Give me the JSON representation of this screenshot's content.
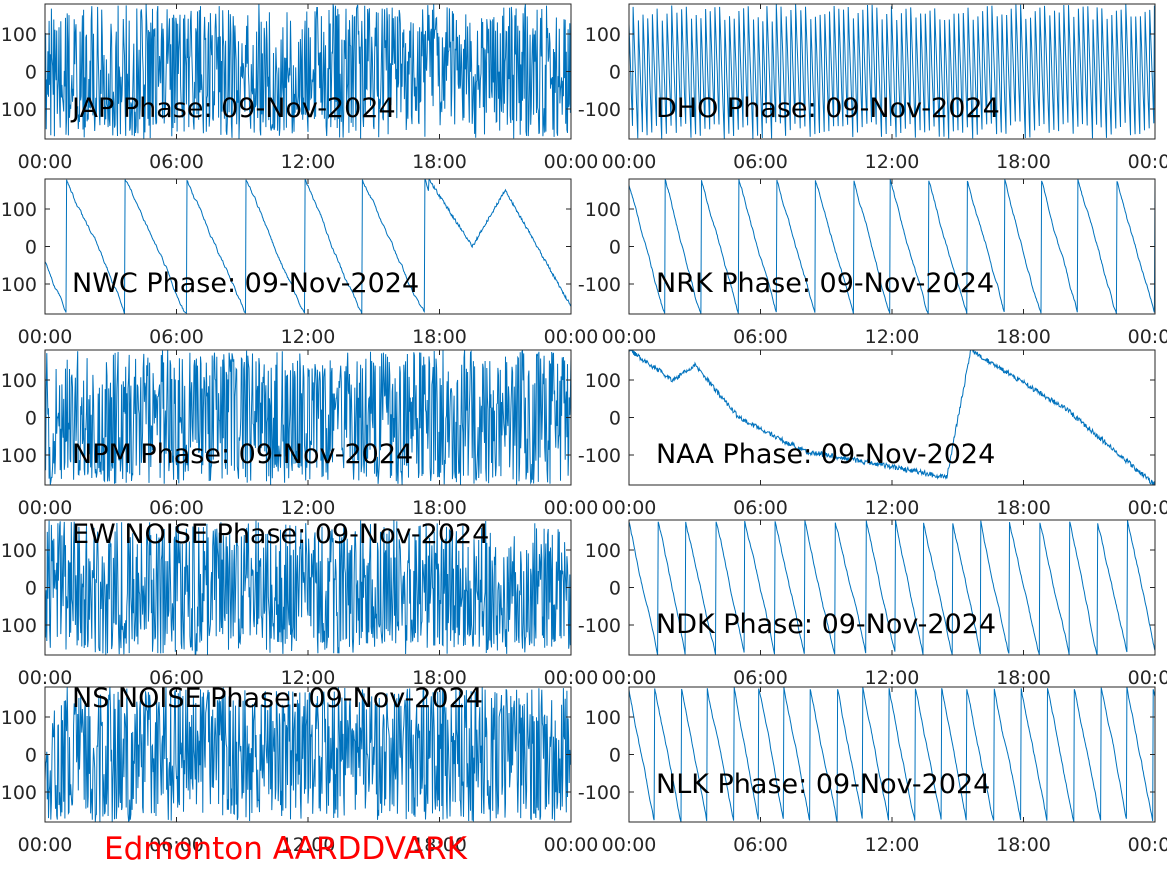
{
  "footer": {
    "label": "Edmonton AARDDVARK",
    "color": "#ff0000"
  },
  "style": {
    "line_color": "#0072bd",
    "axis_color": "#262626",
    "text_color": "#000000"
  },
  "chart_data": [
    {
      "type": "line",
      "title": "JAP Phase: 09-Nov-2024",
      "x_ticks": [
        "00:00",
        "06:00",
        "12:00",
        "18:00",
        "00:00"
      ],
      "y_ticks": [
        "100",
        "0",
        "-100"
      ],
      "ylim": [
        -180,
        180
      ],
      "xlim_hours": [
        0,
        24
      ],
      "pattern": "noise",
      "samples": [
        {
          "t": 0,
          "v": 120
        },
        {
          "t": 6,
          "v": -40
        },
        {
          "t": 12,
          "v": 60
        },
        {
          "t": 18,
          "v": -90
        },
        {
          "t": 24,
          "v": 30
        }
      ]
    },
    {
      "type": "line",
      "title": "DHO Phase: 09-Nov-2024",
      "x_ticks": [
        "00:00",
        "06:00",
        "12:00",
        "18:00",
        "00:00"
      ],
      "y_ticks": [
        "100",
        "0",
        "-100"
      ],
      "ylim": [
        -180,
        180
      ],
      "xlim_hours": [
        0,
        24
      ],
      "pattern": "dense-sawtooth",
      "samples": [
        {
          "t": 0,
          "v": 170
        },
        {
          "t": 7.5,
          "v": -180
        },
        {
          "t": 12,
          "v": 150
        },
        {
          "t": 24,
          "v": -170
        }
      ]
    },
    {
      "type": "line",
      "title": "NWC Phase: 09-Nov-2024",
      "x_ticks": [
        "00:00",
        "06:00",
        "12:00",
        "18:00",
        "00:00"
      ],
      "y_ticks": [
        "100",
        "0",
        "-100"
      ],
      "ylim": [
        -180,
        180
      ],
      "xlim_hours": [
        0,
        24
      ],
      "pattern": "sawtooth",
      "samples": [
        {
          "t": 0,
          "v": -40
        },
        {
          "t": 1,
          "v": 180
        },
        {
          "t": 3.3,
          "v": -170
        },
        {
          "t": 17.5,
          "v": 180
        },
        {
          "t": 19.5,
          "v": 0
        },
        {
          "t": 21,
          "v": 150
        },
        {
          "t": 24,
          "v": -160
        }
      ]
    },
    {
      "type": "line",
      "title": "NRK Phase: 09-Nov-2024",
      "x_ticks": [
        "00:00",
        "06:00",
        "12:00",
        "18:00",
        "00:00"
      ],
      "y_ticks": [
        "100",
        "0",
        "-100"
      ],
      "ylim": [
        -180,
        180
      ],
      "xlim_hours": [
        0,
        24
      ],
      "pattern": "sawtooth",
      "samples": [
        {
          "t": 0,
          "v": 170
        },
        {
          "t": 1.2,
          "v": -170
        },
        {
          "t": 12,
          "v": 90
        },
        {
          "t": 24,
          "v": 20
        }
      ]
    },
    {
      "type": "line",
      "title": "NPM Phase: 09-Nov-2024",
      "x_ticks": [
        "00:00",
        "06:00",
        "12:00",
        "18:00",
        "00:00"
      ],
      "y_ticks": [
        "100",
        "0",
        "-100"
      ],
      "ylim": [
        -180,
        180
      ],
      "xlim_hours": [
        0,
        24
      ],
      "pattern": "noise",
      "samples": [
        {
          "t": 0,
          "v": 50
        },
        {
          "t": 12,
          "v": -60
        },
        {
          "t": 18,
          "v": 40
        },
        {
          "t": 24,
          "v": -30
        }
      ]
    },
    {
      "type": "line",
      "title": "NAA Phase: 09-Nov-2024",
      "x_ticks": [
        "00:00",
        "06:00",
        "12:00",
        "18:00",
        "00:00"
      ],
      "y_ticks": [
        "100",
        "0",
        "-100"
      ],
      "ylim": [
        -180,
        180
      ],
      "xlim_hours": [
        0,
        24
      ],
      "pattern": "drift",
      "samples": [
        {
          "t": 0,
          "v": 180
        },
        {
          "t": 2,
          "v": 100
        },
        {
          "t": 3,
          "v": 140
        },
        {
          "t": 5,
          "v": 0
        },
        {
          "t": 8,
          "v": -90
        },
        {
          "t": 11,
          "v": -120
        },
        {
          "t": 14.5,
          "v": -160
        },
        {
          "t": 15.6,
          "v": 180
        },
        {
          "t": 20,
          "v": 20
        },
        {
          "t": 24,
          "v": -180
        }
      ]
    },
    {
      "type": "line",
      "title": "EW NOISE Phase: 09-Nov-2024",
      "x_ticks": [
        "00:00",
        "06:00",
        "12:00",
        "18:00",
        "00:00"
      ],
      "y_ticks": [
        "100",
        "0",
        "-100"
      ],
      "ylim": [
        -180,
        180
      ],
      "xlim_hours": [
        0,
        24
      ],
      "pattern": "noise",
      "samples": [
        {
          "t": 0,
          "v": 0
        },
        {
          "t": 12,
          "v": 50
        },
        {
          "t": 24,
          "v": 30
        }
      ]
    },
    {
      "type": "line",
      "title": "NDK Phase: 09-Nov-2024",
      "x_ticks": [
        "00:00",
        "06:00",
        "12:00",
        "18:00",
        "00:00"
      ],
      "y_ticks": [
        "100",
        "0",
        "-100"
      ],
      "ylim": [
        -180,
        180
      ],
      "xlim_hours": [
        0,
        24
      ],
      "pattern": "sawtooth",
      "samples": [
        {
          "t": 0,
          "v": 180
        },
        {
          "t": 1.3,
          "v": -180
        },
        {
          "t": 24,
          "v": -180
        }
      ]
    },
    {
      "type": "line",
      "title": "NS NOISE Phase: 09-Nov-2024",
      "x_ticks": [
        "00:00",
        "06:00",
        "12:00",
        "18:00",
        "00:00"
      ],
      "y_ticks": [
        "100",
        "0",
        "-100"
      ],
      "ylim": [
        -180,
        180
      ],
      "xlim_hours": [
        0,
        24
      ],
      "pattern": "noise",
      "samples": [
        {
          "t": 0,
          "v": 20
        },
        {
          "t": 12,
          "v": -50
        },
        {
          "t": 24,
          "v": 40
        }
      ]
    },
    {
      "type": "line",
      "title": "NLK Phase: 09-Nov-2024",
      "x_ticks": [
        "00:00",
        "06:00",
        "12:00",
        "18:00",
        "00:00"
      ],
      "y_ticks": [
        "100",
        "0",
        "-100"
      ],
      "ylim": [
        -180,
        180
      ],
      "xlim_hours": [
        0,
        24
      ],
      "pattern": "sawtooth",
      "samples": [
        {
          "t": 0,
          "v": 180
        },
        {
          "t": 0.6,
          "v": -180
        },
        {
          "t": 24,
          "v": -180
        }
      ]
    }
  ]
}
